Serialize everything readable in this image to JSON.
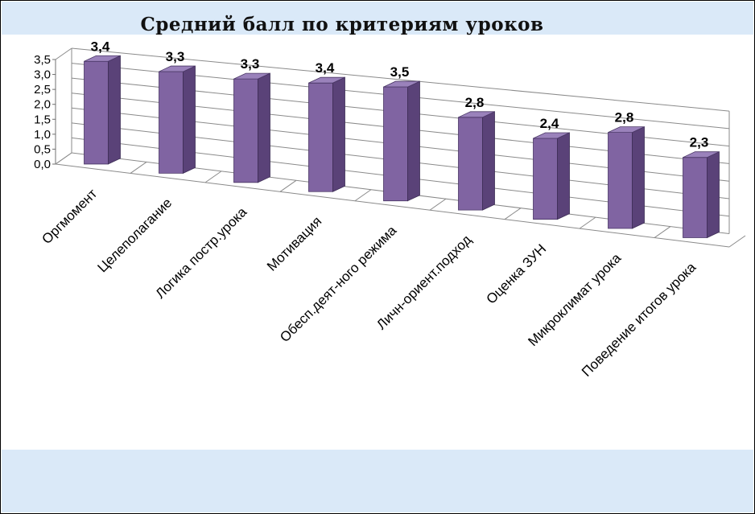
{
  "chart_data": {
    "type": "bar",
    "title": "Средний балл по критериям уроков",
    "categories": [
      "Оргмомент",
      "Целеполагание",
      "Логика постр.урока",
      "Мотивация",
      "Обесп.деят-ного режима",
      "Личн-ориент.подход",
      "Оценка ЗУН",
      "Микроклимат урока",
      "Поведение итогов урока"
    ],
    "values": [
      3.4,
      3.3,
      3.3,
      3.4,
      3.5,
      2.8,
      2.4,
      2.8,
      2.3
    ],
    "value_labels": [
      "3,4",
      "3,3",
      "3,3",
      "3,4",
      "3,5",
      "2,8",
      "2,4",
      "2,8",
      "2,3"
    ],
    "yticks": [
      "0,0",
      "0,5",
      "1,0",
      "1,5",
      "2,0",
      "2,5",
      "3,0",
      "3,5"
    ],
    "ylim": [
      0,
      3.5
    ],
    "grid": true,
    "legend": "none",
    "bar_color": "#8064a2",
    "bar_side_color": "#5a4278",
    "bar_top_color": "#9a82bb"
  }
}
